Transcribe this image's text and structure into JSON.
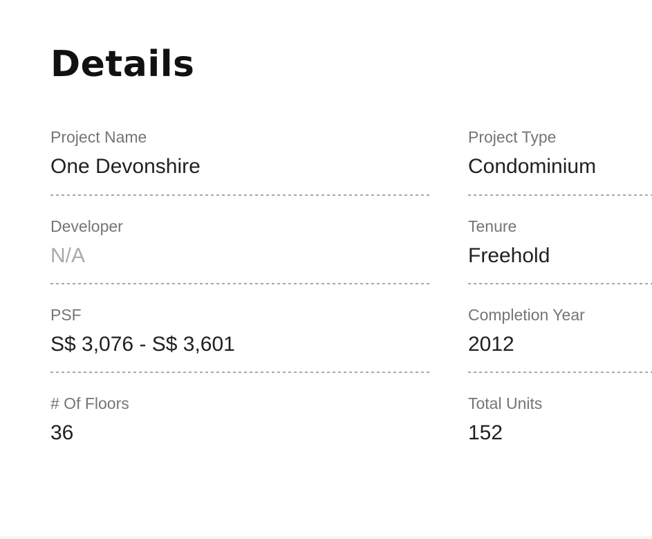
{
  "page": {
    "title": "Details"
  },
  "colors": {
    "background": "#ffffff",
    "title_text": "#111111",
    "label_text": "#757575",
    "value_text": "#212121",
    "muted_value_text": "#aaaaaa",
    "dashed_divider": "#a6a6a6",
    "footer_strip": "#f5f5f5"
  },
  "fields": [
    {
      "label": "Project Name",
      "value": "One Devonshire"
    },
    {
      "label": "Project Type",
      "value": "Condominium"
    },
    {
      "label": "Developer",
      "value": "N/A"
    },
    {
      "label": "Tenure",
      "value": "Freehold"
    },
    {
      "label": "PSF",
      "value": "S$ 3,076 - S$ 3,601"
    },
    {
      "label": "Completion Year",
      "value": "2012"
    },
    {
      "label": "# Of Floors",
      "value": "36"
    },
    {
      "label": "Total Units",
      "value": "152"
    }
  ]
}
